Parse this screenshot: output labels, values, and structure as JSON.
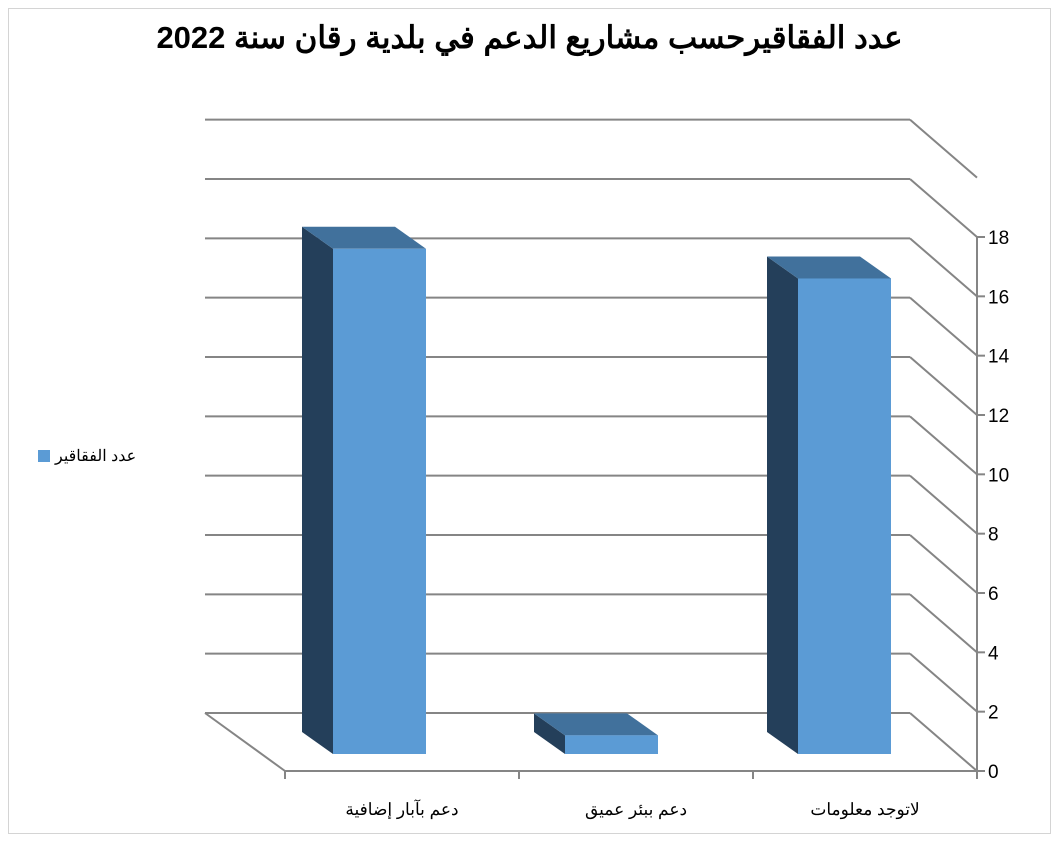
{
  "chart_data": {
    "type": "bar",
    "style": "3d-column",
    "title": "عدد الفقاقيرحسب مشاريع الدعم في بلدية رقان سنة 2022",
    "categories": [
      "دعم بآبار إضافية",
      "دعم ببئر عميق",
      "لاتوجد معلومات"
    ],
    "series": [
      {
        "name": "عدد الفقاقير",
        "values": [
          17.4,
          1,
          16.4
        ]
      }
    ],
    "ylim": [
      0,
      18
    ],
    "yticks": [
      "0",
      "2",
      "4",
      "6",
      "8",
      "10",
      "12",
      "14",
      "16",
      "18"
    ],
    "grid": true,
    "legend": "left",
    "colors": {
      "front": "#5B9BD5",
      "side": "#243F5A",
      "top": "#41719C",
      "grid": "#858585"
    }
  }
}
